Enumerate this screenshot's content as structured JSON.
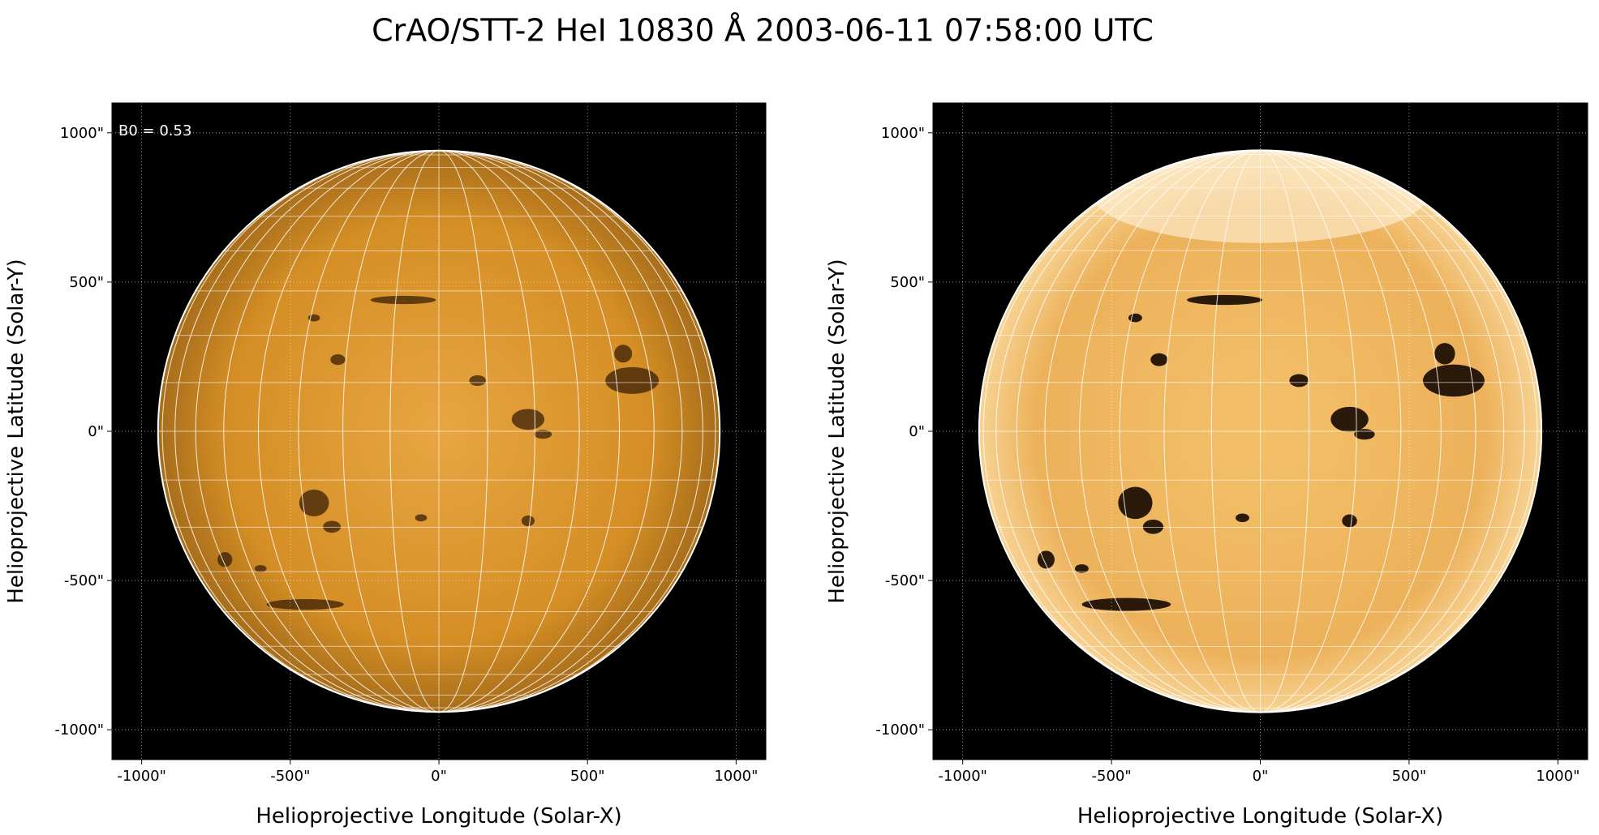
{
  "title": "CrAO/STT-2 HeI 10830 Å 2003-06-11 07:58:00 UTC",
  "chart_data": [
    {
      "type": "image",
      "annotation": "B0 = 0.53",
      "x_label": "Helioprojective Longitude (Solar-X)",
      "y_label": "Helioprojective Latitude (Solar-Y)",
      "xlim": [
        -1100,
        1100
      ],
      "ylim": [
        -1100,
        1100
      ],
      "xticks": [
        {
          "value": -1000,
          "label": "-1000\""
        },
        {
          "value": -500,
          "label": "-500\""
        },
        {
          "value": 0,
          "label": "0\""
        },
        {
          "value": 500,
          "label": "500\""
        },
        {
          "value": 1000,
          "label": "1000\""
        }
      ],
      "yticks": [
        {
          "value": -1000,
          "label": "-1000\""
        },
        {
          "value": -500,
          "label": "-500\""
        },
        {
          "value": 0,
          "label": "0\""
        },
        {
          "value": 500,
          "label": "500\""
        },
        {
          "value": 1000,
          "label": "1000\""
        }
      ],
      "grid": true,
      "color": "#d9922a"
    },
    {
      "type": "image",
      "x_label": "Helioprojective Longitude (Solar-X)",
      "y_label": "Helioprojective Latitude (Solar-Y)",
      "xlim": [
        -1100,
        1100
      ],
      "ylim": [
        -1100,
        1100
      ],
      "xticks": [
        {
          "value": -1000,
          "label": "-1000\""
        },
        {
          "value": -500,
          "label": "-500\""
        },
        {
          "value": 0,
          "label": "0\""
        },
        {
          "value": 500,
          "label": "500\""
        },
        {
          "value": 1000,
          "label": "1000\""
        }
      ],
      "yticks": [
        {
          "value": -1000,
          "label": "-1000\""
        },
        {
          "value": -500,
          "label": "-500\""
        },
        {
          "value": 0,
          "label": "0\""
        },
        {
          "value": 500,
          "label": "500\""
        },
        {
          "value": 1000,
          "label": "1000\""
        }
      ],
      "grid": true,
      "color": "#f0b550"
    }
  ]
}
